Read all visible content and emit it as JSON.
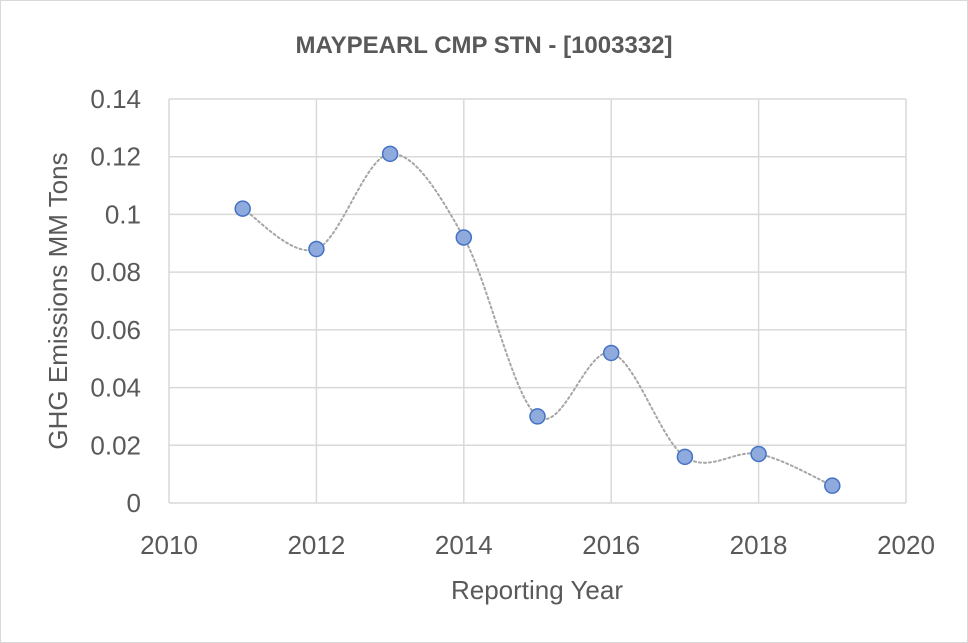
{
  "chart_data": {
    "type": "scatter",
    "title": "MAYPEARL CMP STN - [1003332]",
    "xlabel": "Reporting Year",
    "ylabel": "GHG Emissions MM Tons",
    "xlim": [
      2010,
      2020
    ],
    "ylim": [
      0,
      0.14
    ],
    "x_ticks": [
      "2010",
      "2012",
      "2014",
      "2016",
      "2018",
      "2020"
    ],
    "y_ticks": [
      "0",
      "0.02",
      "0.04",
      "0.06",
      "0.08",
      "0.1",
      "0.12",
      "0.14"
    ],
    "x_tick_values": [
      2010,
      2012,
      2014,
      2016,
      2018,
      2020
    ],
    "y_tick_values": [
      0,
      0.02,
      0.04,
      0.06,
      0.08,
      0.1,
      0.12,
      0.14
    ],
    "grid": true,
    "smoothed_line": true,
    "legend": "none",
    "series": [
      {
        "x": [
          2011,
          2012,
          2013,
          2014,
          2015,
          2016,
          2017,
          2018,
          2019
        ],
        "y": [
          0.102,
          0.088,
          0.121,
          0.092,
          0.03,
          0.052,
          0.016,
          0.017,
          0.006
        ],
        "marker_color": "#8faadc",
        "marker_edge_color": "#4472c4",
        "line_color": "#a6a6a6"
      }
    ],
    "colors": {
      "grid": "#d9d9d9",
      "text": "#595959",
      "border": "#d9d9d9"
    }
  }
}
